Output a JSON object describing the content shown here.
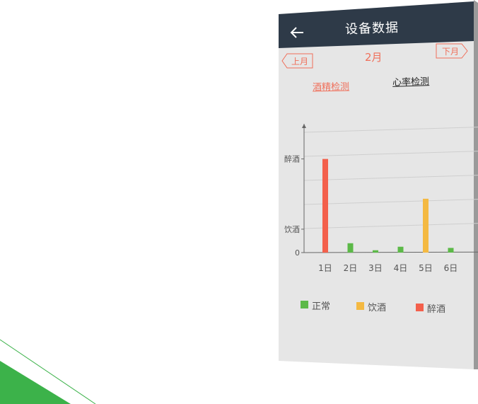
{
  "header": {
    "title": "设备数据",
    "back_icon": "arrow-left-icon"
  },
  "nav": {
    "month": "2月",
    "prev_label": "上月",
    "next_label": "下月"
  },
  "tabs": [
    {
      "label": "酒精检测",
      "active": true
    },
    {
      "label": "心率检测",
      "active": false
    }
  ],
  "colors": {
    "header_bg": "#2e3a48",
    "accent": "#f06f5a",
    "normal": "#5cb948",
    "drinking": "#f4b942",
    "drunk": "#f3604c",
    "screen_bg": "#e6e6e6"
  },
  "chart_data": {
    "type": "bar",
    "categories": [
      "1日",
      "2日",
      "3日",
      "4日",
      "5日",
      "6日"
    ],
    "values": [
      4,
      0.4,
      0.1,
      0.25,
      2.3,
      0.2
    ],
    "statuses": [
      "醉酒",
      "正常",
      "正常",
      "正常",
      "饮酒",
      "正常"
    ],
    "y_tick_labels": [
      {
        "value": 0,
        "label": "0"
      },
      {
        "value": 1,
        "label": "饮酒"
      },
      {
        "value": 4,
        "label": "醉酒"
      }
    ],
    "ylim": [
      0,
      5.5
    ],
    "grid": true,
    "legend": [
      {
        "label": "正常",
        "color": "#5cb948"
      },
      {
        "label": "饮酒",
        "color": "#f4b942"
      },
      {
        "label": "醉酒",
        "color": "#f3604c"
      }
    ],
    "legend_position": "bottom"
  }
}
